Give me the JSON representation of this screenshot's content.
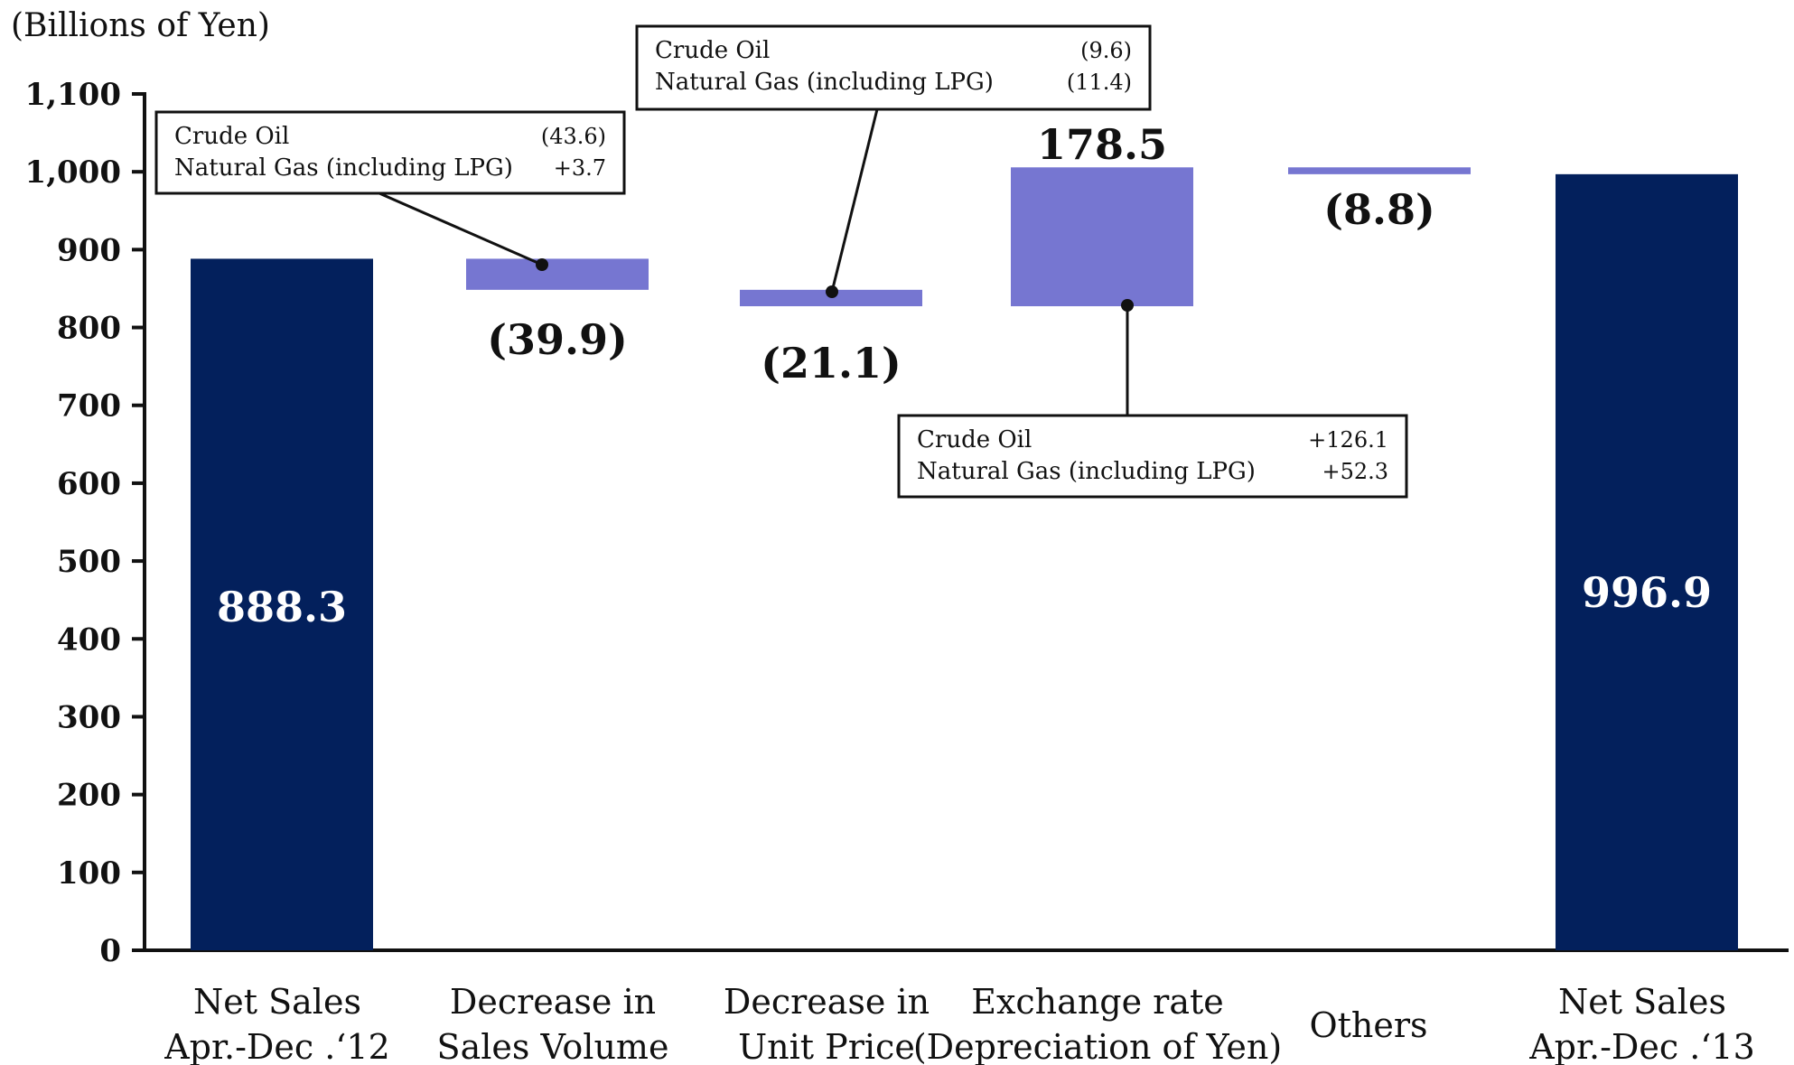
{
  "chart_data": {
    "type": "bar",
    "subtype": "waterfall",
    "unit_label": "(Billions of Yen)",
    "ylim": [
      0,
      1100
    ],
    "yticks": [
      "0",
      "100",
      "200",
      "300",
      "400",
      "500",
      "600",
      "700",
      "800",
      "900",
      "1,000",
      "1,100"
    ],
    "categories": [
      [
        "Net Sales",
        "Apr.-Dec .‘12"
      ],
      [
        "Decrease in",
        "Sales Volume"
      ],
      [
        "Decrease in",
        "Unit Price"
      ],
      [
        "Exchange rate",
        "(Depreciation of Yen)"
      ],
      [
        "Others"
      ],
      [
        "Net Sales",
        "Apr.-Dec .‘13"
      ]
    ],
    "bars": [
      {
        "kind": "total",
        "start": 0,
        "end": 888.3,
        "label": "888.3"
      },
      {
        "kind": "delta",
        "start": 888.3,
        "end": 848.4,
        "label": "(39.9)"
      },
      {
        "kind": "delta",
        "start": 848.4,
        "end": 827.3,
        "label": "(21.1)"
      },
      {
        "kind": "delta",
        "start": 827.3,
        "end": 1005.7,
        "label": "178.5"
      },
      {
        "kind": "delta",
        "start": 1005.7,
        "end": 996.9,
        "label": "(8.8)"
      },
      {
        "kind": "total",
        "start": 0,
        "end": 996.9,
        "label": "996.9"
      }
    ],
    "callouts": [
      {
        "bar": 1,
        "rows": [
          [
            "Crude Oil",
            "(43.6)"
          ],
          [
            "Natural  Gas  (including  LPG)",
            "+3.7"
          ]
        ]
      },
      {
        "bar": 2,
        "rows": [
          [
            "Crude Oil",
            "(9.6)"
          ],
          [
            "Natural  Gas  (including  LPG)",
            "(11.4)"
          ]
        ]
      },
      {
        "bar": 3,
        "rows": [
          [
            "Crude  Oil",
            "+126.1"
          ],
          [
            "Natural  Gas  (including  LPG)",
            "+52.3"
          ]
        ]
      }
    ],
    "colors": {
      "total": "#03205c",
      "delta": "#7676d1",
      "axis": "#111111"
    }
  }
}
